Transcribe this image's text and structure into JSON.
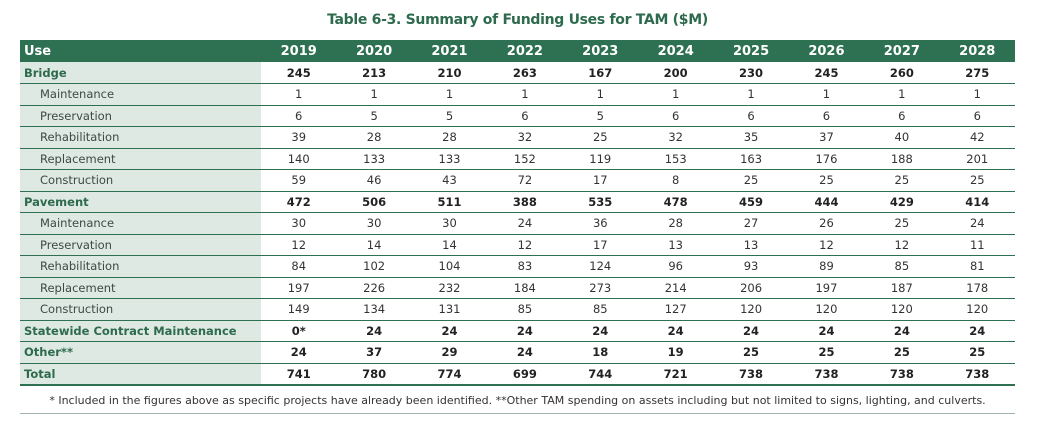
{
  "title": "Table 6-3. Summary of Funding Uses for TAM ($M)",
  "header": {
    "use": "Use",
    "years": [
      "2019",
      "2020",
      "2021",
      "2022",
      "2023",
      "2024",
      "2025",
      "2026",
      "2027",
      "2028"
    ]
  },
  "rows": [
    {
      "label": "Bridge",
      "kind": "group",
      "values": [
        "245",
        "213",
        "210",
        "263",
        "167",
        "200",
        "230",
        "245",
        "260",
        "275"
      ]
    },
    {
      "label": "Maintenance",
      "kind": "sub",
      "values": [
        "1",
        "1",
        "1",
        "1",
        "1",
        "1",
        "1",
        "1",
        "1",
        "1"
      ]
    },
    {
      "label": "Preservation",
      "kind": "sub",
      "values": [
        "6",
        "5",
        "5",
        "6",
        "5",
        "6",
        "6",
        "6",
        "6",
        "6"
      ]
    },
    {
      "label": "Rehabilitation",
      "kind": "sub",
      "values": [
        "39",
        "28",
        "28",
        "32",
        "25",
        "32",
        "35",
        "37",
        "40",
        "42"
      ]
    },
    {
      "label": "Replacement",
      "kind": "sub",
      "values": [
        "140",
        "133",
        "133",
        "152",
        "119",
        "153",
        "163",
        "176",
        "188",
        "201"
      ]
    },
    {
      "label": "Construction",
      "kind": "sub",
      "values": [
        "59",
        "46",
        "43",
        "72",
        "17",
        "8",
        "25",
        "25",
        "25",
        "25"
      ]
    },
    {
      "label": "Pavement",
      "kind": "group",
      "values": [
        "472",
        "506",
        "511",
        "388",
        "535",
        "478",
        "459",
        "444",
        "429",
        "414"
      ]
    },
    {
      "label": "Maintenance",
      "kind": "sub",
      "values": [
        "30",
        "30",
        "30",
        "24",
        "36",
        "28",
        "27",
        "26",
        "25",
        "24"
      ]
    },
    {
      "label": "Preservation",
      "kind": "sub",
      "values": [
        "12",
        "14",
        "14",
        "12",
        "17",
        "13",
        "13",
        "12",
        "12",
        "11"
      ]
    },
    {
      "label": "Rehabilitation",
      "kind": "sub",
      "values": [
        "84",
        "102",
        "104",
        "83",
        "124",
        "96",
        "93",
        "89",
        "85",
        "81"
      ]
    },
    {
      "label": "Replacement",
      "kind": "sub",
      "values": [
        "197",
        "226",
        "232",
        "184",
        "273",
        "214",
        "206",
        "197",
        "187",
        "178"
      ]
    },
    {
      "label": "Construction",
      "kind": "sub",
      "values": [
        "149",
        "134",
        "131",
        "85",
        "85",
        "127",
        "120",
        "120",
        "120",
        "120"
      ]
    },
    {
      "label": "Statewide Contract Maintenance",
      "kind": "group-label",
      "values": [
        "0*",
        "24",
        "24",
        "24",
        "24",
        "24",
        "24",
        "24",
        "24",
        "24"
      ]
    },
    {
      "label": "Other**",
      "kind": "group-label",
      "values": [
        "24",
        "37",
        "29",
        "24",
        "18",
        "19",
        "25",
        "25",
        "25",
        "25"
      ]
    },
    {
      "label": "Total",
      "kind": "group",
      "values": [
        "741",
        "780",
        "774",
        "699",
        "744",
        "721",
        "738",
        "738",
        "738",
        "738"
      ]
    }
  ],
  "footnote": "* Included in the figures above as specific projects have already been identified. **Other TAM spending on assets including but not limited to signs, lighting, and culverts."
}
